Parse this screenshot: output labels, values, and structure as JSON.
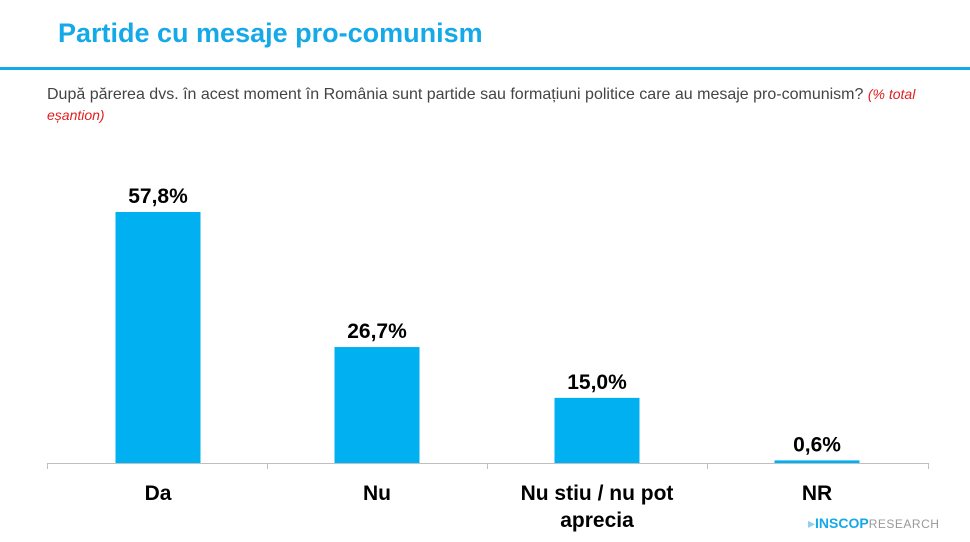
{
  "header": {
    "title": "Partide cu mesaje pro-comunism"
  },
  "subtitle": {
    "question": "După părerea dvs. în acest moment în România sunt partide sau formațiuni politice care au mesaje pro-comunism?",
    "note": "(% total eșantion)"
  },
  "chart_data": {
    "type": "bar",
    "categories": [
      [
        "Da"
      ],
      [
        "Nu"
      ],
      [
        "Nu stiu / nu pot",
        "aprecia"
      ],
      [
        "NR"
      ]
    ],
    "values": [
      57.8,
      26.7,
      15.0,
      0.6
    ],
    "data_labels": [
      "57,8%",
      "26,7%",
      "15,0%",
      "0,6%"
    ],
    "ylim": [
      0,
      60
    ],
    "grid": false,
    "bar_color": "#00b0f0"
  },
  "logo": {
    "brand": "INSCOP",
    "suffix": "RESEARCH"
  }
}
